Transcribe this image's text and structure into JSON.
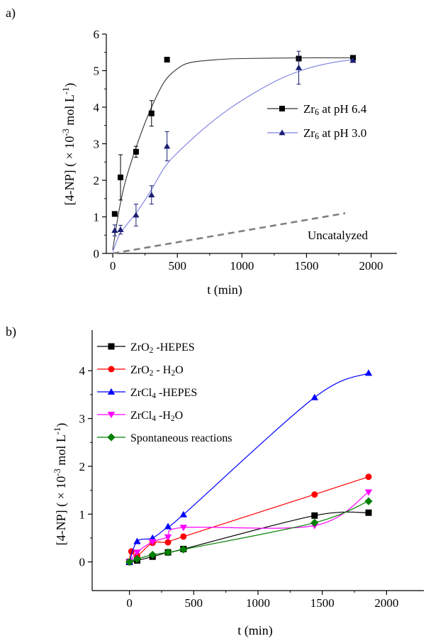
{
  "chart_data": [
    {
      "panel": "a)",
      "type": "scatter",
      "xlabel": "t (min)",
      "ylabel": "[4-NP] ( × 10⁻³ mol L⁻¹)",
      "xlim": [
        -50,
        2200
      ],
      "ylim": [
        0,
        6
      ],
      "xticks": [
        0,
        500,
        1000,
        1500,
        2000
      ],
      "yticks": [
        0,
        1,
        2,
        3,
        4,
        5,
        6
      ],
      "legend_position": "right",
      "series": [
        {
          "name": "Zr₆ at pH 6.4",
          "marker": "square",
          "color": "#000000",
          "line_color": "#333333",
          "x": [
            0,
            15,
            60,
            180,
            300,
            420,
            1440,
            1860
          ],
          "y": [
            0.05,
            1.08,
            2.08,
            2.78,
            3.83,
            5.3,
            5.33,
            5.35
          ],
          "err": [
            0,
            0.0,
            0.62,
            0.15,
            0.35,
            0,
            0.0,
            0
          ],
          "fit": [
            [
              0,
              0.1
            ],
            [
              50,
              1.2
            ],
            [
              100,
              2.0
            ],
            [
              200,
              3.1
            ],
            [
              300,
              4.0
            ],
            [
              400,
              4.7
            ],
            [
              500,
              5.05
            ],
            [
              600,
              5.22
            ],
            [
              800,
              5.3
            ],
            [
              1000,
              5.33
            ],
            [
              1500,
              5.35
            ],
            [
              1860,
              5.35
            ]
          ]
        },
        {
          "name": "Zr₆ at pH 3.0",
          "marker": "triangle",
          "color": "#1a1f73",
          "line_color": "#7b7fe0",
          "x": [
            0,
            15,
            60,
            180,
            300,
            420,
            1440,
            1860
          ],
          "y": [
            0.05,
            0.63,
            0.65,
            1.05,
            1.6,
            2.93,
            5.08,
            5.28
          ],
          "err": [
            0,
            0.15,
            0.12,
            0.3,
            0.25,
            0.4,
            0.45,
            0
          ],
          "fit": [
            [
              0,
              0.05
            ],
            [
              50,
              0.5
            ],
            [
              100,
              0.75
            ],
            [
              200,
              1.2
            ],
            [
              300,
              1.75
            ],
            [
              400,
              2.35
            ],
            [
              500,
              2.75
            ],
            [
              700,
              3.4
            ],
            [
              900,
              3.95
            ],
            [
              1100,
              4.4
            ],
            [
              1300,
              4.78
            ],
            [
              1500,
              5.05
            ],
            [
              1700,
              5.22
            ],
            [
              1860,
              5.3
            ]
          ]
        },
        {
          "name": "Uncatalyzed",
          "type": "dashed-line",
          "color": "#808080",
          "x": [
            0,
            1800
          ],
          "y": [
            0.0,
            1.1
          ]
        }
      ],
      "annotations": [
        "Uncatalyzed"
      ]
    },
    {
      "panel": "b)",
      "type": "line",
      "xlabel": "t (min)",
      "ylabel": "[4-NP] ( × 10⁻³ mol L⁻¹)",
      "xlim": [
        -290,
        2290
      ],
      "ylim": [
        -0.6,
        4.85
      ],
      "xticks": [
        0,
        500,
        1000,
        1500,
        2000
      ],
      "yticks": [
        0,
        1,
        2,
        3,
        4
      ],
      "legend_position": "top-left",
      "series": [
        {
          "name": "ZrO₂ -HEPES",
          "marker": "square",
          "color": "#000000",
          "x": [
            0,
            60,
            180,
            300,
            420,
            1440,
            1860
          ],
          "y": [
            0.0,
            0.03,
            0.11,
            0.2,
            0.27,
            0.97,
            1.03
          ]
        },
        {
          "name": "ZrO₂ - H₂O",
          "marker": "circle",
          "color": "#ff0000",
          "x": [
            0,
            15,
            60,
            180,
            300,
            420,
            1440,
            1860
          ],
          "y": [
            0.0,
            0.22,
            0.13,
            0.4,
            0.41,
            0.53,
            1.41,
            1.78
          ]
        },
        {
          "name": "ZrCl₄ -HEPES",
          "marker": "triangle",
          "color": "#0000ff",
          "x": [
            0,
            60,
            180,
            300,
            420,
            1440,
            1860
          ],
          "y": [
            0.0,
            0.43,
            0.5,
            0.74,
            0.99,
            3.44,
            3.95
          ]
        },
        {
          "name": "ZrCl₄ -H₂O",
          "marker": "triangle-down",
          "color": "#ff00ff",
          "x": [
            0,
            60,
            180,
            300,
            420,
            1440,
            1860
          ],
          "y": [
            0.0,
            0.2,
            0.42,
            0.52,
            0.72,
            0.76,
            1.46
          ]
        },
        {
          "name": "Spontaneous reactions",
          "marker": "diamond",
          "color": "#008000",
          "x": [
            0,
            60,
            180,
            300,
            420,
            1440,
            1860
          ],
          "y": [
            0.0,
            0.06,
            0.15,
            0.2,
            0.26,
            0.82,
            1.27
          ]
        }
      ]
    }
  ]
}
